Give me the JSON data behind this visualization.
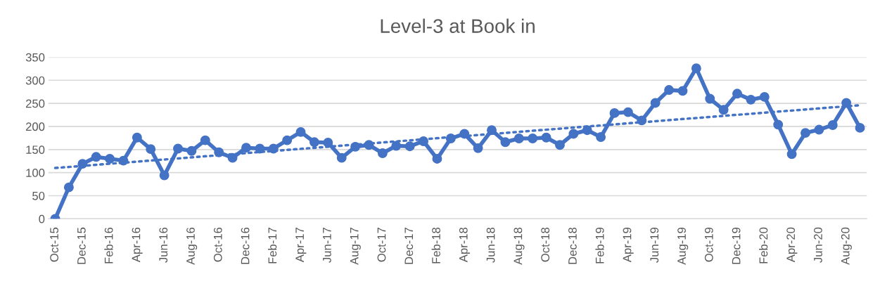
{
  "chart_data": {
    "type": "line",
    "title": "Level-3 at Book in",
    "categories": [
      "Oct-15",
      null,
      "Dec-15",
      null,
      "Feb-16",
      null,
      "Apr-16",
      null,
      "Jun-16",
      null,
      "Aug-16",
      null,
      "Oct-16",
      null,
      "Dec-16",
      null,
      "Feb-17",
      null,
      "Apr-17",
      null,
      "Jun-17",
      null,
      "Aug-17",
      null,
      "Oct-17",
      null,
      "Dec-17",
      null,
      "Feb-18",
      null,
      "Apr-18",
      null,
      "Jun-18",
      null,
      "Aug-18",
      null,
      "Oct-18",
      null,
      "Dec-18",
      null,
      "Feb-19",
      null,
      "Apr-19",
      null,
      "Jun-19",
      null,
      "Aug-19",
      null,
      "Oct-19",
      null,
      "Dec-19",
      null,
      "Feb-20",
      null,
      "Apr-20",
      null,
      "Jun-20",
      null,
      "Aug-20",
      null
    ],
    "series": [
      {
        "color": "#4472c4",
        "marker": "circle",
        "line_style": "solid",
        "values": [
          0,
          68,
          119,
          134,
          130,
          126,
          176,
          151,
          94,
          152,
          147,
          170,
          144,
          132,
          154,
          152,
          152,
          170,
          188,
          166,
          165,
          132,
          156,
          160,
          142,
          158,
          157,
          168,
          130,
          174,
          184,
          153,
          192,
          166,
          174,
          174,
          176,
          160,
          184,
          192,
          177,
          229,
          231,
          213,
          251,
          279,
          277,
          326,
          260,
          236,
          271,
          258,
          264,
          204,
          140,
          186,
          193,
          203,
          251,
          197
        ]
      },
      {
        "color": "#4472c4",
        "marker": "none",
        "line_style": "dotted",
        "values": [
          110,
          null,
          null,
          null,
          null,
          null,
          null,
          null,
          null,
          null,
          null,
          null,
          null,
          null,
          null,
          null,
          null,
          null,
          null,
          null,
          null,
          null,
          null,
          null,
          null,
          null,
          null,
          null,
          null,
          null,
          null,
          null,
          null,
          null,
          null,
          null,
          null,
          null,
          null,
          null,
          null,
          null,
          null,
          null,
          null,
          null,
          null,
          null,
          null,
          null,
          null,
          null,
          null,
          null,
          null,
          null,
          null,
          null,
          null,
          246
        ]
      }
    ],
    "ylim": [
      0,
      350
    ],
    "yticks": [
      0,
      50,
      100,
      150,
      200,
      250,
      300,
      350
    ],
    "grid": "y",
    "legend": false
  }
}
